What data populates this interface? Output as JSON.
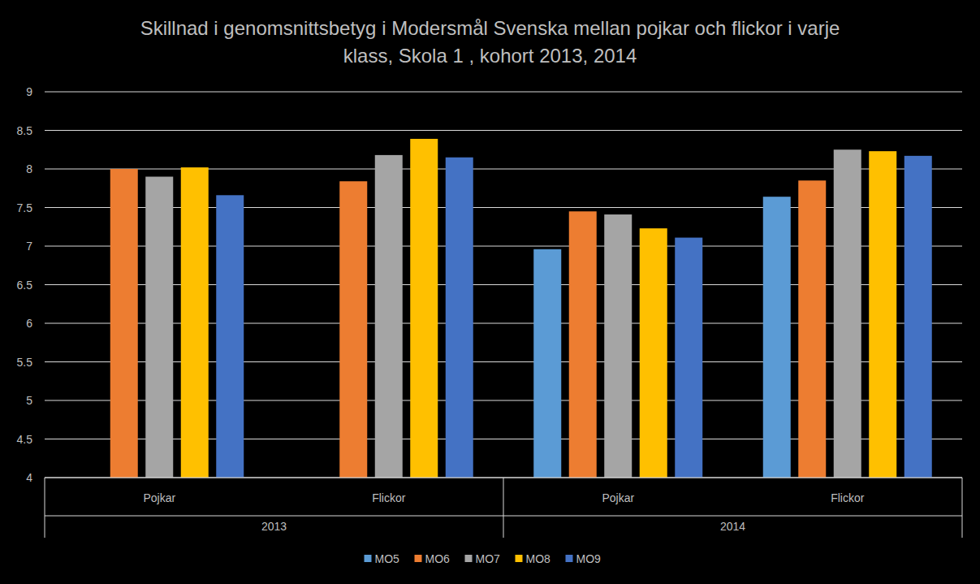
{
  "chart_data": {
    "type": "bar",
    "title": "Skillnad i genomsnittsbetyg i Modersmål Svenska mellan pojkar och flickor i varje klass, Skola 1 , kohort 2013, 2014",
    "categories": [
      "Pojkar",
      "Flickor",
      "Pojkar",
      "Flickor"
    ],
    "group_labels": [
      "2013",
      "2013",
      "2014",
      "2014"
    ],
    "series": [
      {
        "name": "MO5",
        "color": "#5b9bd5",
        "values": [
          null,
          null,
          6.96,
          7.64
        ]
      },
      {
        "name": "MO6",
        "color": "#ed7d31",
        "values": [
          8.0,
          7.84,
          7.45,
          7.85
        ]
      },
      {
        "name": "MO7",
        "color": "#a5a5a5",
        "values": [
          7.9,
          8.18,
          7.41,
          8.25
        ]
      },
      {
        "name": "MO8",
        "color": "#ffc000",
        "values": [
          8.02,
          8.39,
          7.23,
          8.23
        ]
      },
      {
        "name": "MO9",
        "color": "#4472c4",
        "values": [
          7.66,
          8.15,
          7.11,
          8.17
        ]
      }
    ],
    "ylim": [
      4,
      9
    ],
    "yticks": [
      4,
      4.5,
      5,
      5.5,
      6,
      6.5,
      7,
      7.5,
      8,
      8.5,
      9
    ],
    "grid": true,
    "legend": "bottom"
  }
}
